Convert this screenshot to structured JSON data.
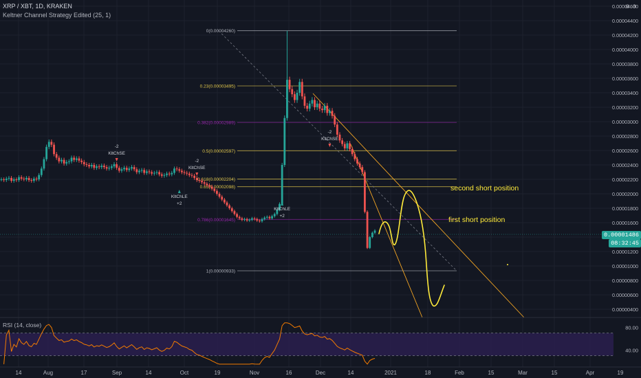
{
  "header": {
    "symbol_line": "XRP / XBT, 1D, KRAKEN",
    "indicator_line": "Keltner Channel Strategy Edited (25, 1)",
    "top_right_value": "0.0"
  },
  "price_badge": {
    "value": "0.00001486",
    "timer": "08:32:45",
    "color": "#26a69a"
  },
  "rsi": {
    "label": "RSI (14, close)",
    "ticks": [
      "80.00",
      "40.00"
    ],
    "upper": 70,
    "lower": 30,
    "line_color": "#f57c00",
    "band_color": "#2a1e4d"
  },
  "colors": {
    "background": "#131722",
    "up": "#26a69a",
    "down": "#ef5350",
    "fib_gray": "#b2b5be",
    "fib_yellow": "#e0c64a",
    "fib_purple": "#9c27b0",
    "trend": "#f5a623",
    "drawing": "#ffeb3b"
  },
  "chart_data": {
    "type": "candlestick",
    "y_axis_ticks": [
      "0.00004600",
      "0.00004400",
      "0.00004200",
      "0.00004000",
      "0.00003800",
      "0.00003600",
      "0.00003400",
      "0.00003200",
      "0.00003000",
      "0.00002800",
      "0.00002600",
      "0.00002400",
      "0.00002200",
      "0.00002000",
      "0.00001800",
      "0.00001600",
      "0.00001400",
      "0.00001200",
      "0.00001000",
      "0.00000800",
      "0.00000600",
      "0.00000400"
    ],
    "x_axis_ticks": [
      "14",
      "Aug",
      "17",
      "Sep",
      "14",
      "Oct",
      "19",
      "Nov",
      "16",
      "Dec",
      "14",
      "2021",
      "18",
      "Feb",
      "15",
      "Mar",
      "15",
      "Apr",
      "19"
    ],
    "fib_levels": [
      {
        "label": "0(0.00004260)",
        "value": 4.26e-05,
        "color": "gray"
      },
      {
        "label": "0.23(0.00003495)",
        "value": 3.495e-05,
        "color": "yellow"
      },
      {
        "label": "0.382(0.00002989)",
        "value": 2.989e-05,
        "color": "purple"
      },
      {
        "label": "0.5(0.00002597)",
        "value": 2.597e-05,
        "color": "yellow"
      },
      {
        "label": "0.618(0.00002204)",
        "value": 2.204e-05,
        "color": "yellow"
      },
      {
        "label": "0.65(0.00002098)",
        "value": 2.098e-05,
        "color": "yellow"
      },
      {
        "label": "0.786(0.00001645)",
        "value": 1.645e-05,
        "color": "purple"
      },
      {
        "label": "1(0.00000933)",
        "value": 9.33e-06,
        "color": "gray"
      }
    ],
    "close_series": [
      2.2e-05,
      2.19e-05,
      2.21e-05,
      2.22e-05,
      2.18e-05,
      2.2e-05,
      2.19e-05,
      2.23e-05,
      2.21e-05,
      2.2e-05,
      2.22e-05,
      2.19e-05,
      2.18e-05,
      2.21e-05,
      2.2e-05,
      2.26e-05,
      2.35e-05,
      2.48e-05,
      2.65e-05,
      2.72e-05,
      2.68e-05,
      2.55e-05,
      2.5e-05,
      2.45e-05,
      2.47e-05,
      2.42e-05,
      2.44e-05,
      2.45e-05,
      2.5e-05,
      2.47e-05,
      2.49e-05,
      2.46e-05,
      2.44e-05,
      2.41e-05,
      2.4e-05,
      2.38e-05,
      2.4e-05,
      2.36e-05,
      2.38e-05,
      2.37e-05,
      2.39e-05,
      2.37e-05,
      2.35e-05,
      2.36e-05,
      2.38e-05,
      2.41e-05,
      2.36e-05,
      2.32e-05,
      2.34e-05,
      2.36e-05,
      2.33e-05,
      2.35e-05,
      2.37e-05,
      2.34e-05,
      2.3e-05,
      2.32e-05,
      2.33e-05,
      2.29e-05,
      2.31e-05,
      2.3e-05,
      2.28e-05,
      2.29e-05,
      2.3e-05,
      2.27e-05,
      2.25e-05,
      2.26e-05,
      2.28e-05,
      2.27e-05,
      2.29e-05,
      2.35e-05,
      2.34e-05,
      2.32e-05,
      2.3e-05,
      2.29e-05,
      2.28e-05,
      2.26e-05,
      2.25e-05,
      2.22e-05,
      2.19e-05,
      2.18e-05,
      2.16e-05,
      2.14e-05,
      2.12e-05,
      2.1e-05,
      2.07e-05,
      2.04e-05,
      2e-05,
      1.96e-05,
      1.92e-05,
      1.88e-05,
      1.84e-05,
      1.8e-05,
      1.76e-05,
      1.72e-05,
      1.68e-05,
      1.66e-05,
      1.64e-05,
      1.65e-05,
      1.63e-05,
      1.64e-05,
      1.66e-05,
      1.65e-05,
      1.63e-05,
      1.62e-05,
      1.65e-05,
      1.67e-05,
      1.68e-05,
      1.66e-05,
      1.69e-05,
      1.72e-05,
      1.78e-05,
      1.86e-05,
      2.4e-05,
      3.05e-05,
      3.58e-05,
      3.45e-05,
      3.38e-05,
      3.3e-05,
      3.4e-05,
      3.55e-05,
      3.35e-05,
      3.22e-05,
      3.18e-05,
      3.25e-05,
      3.3e-05,
      3.2e-05,
      3.25e-05,
      3.18e-05,
      3.16e-05,
      3.22e-05,
      3.12e-05,
      3.15e-05,
      3.08e-05,
      2.96e-05,
      2.82e-05,
      2.74e-05,
      2.69e-05,
      2.63e-05,
      2.7e-05,
      2.62e-05,
      2.55e-05,
      2.48e-05,
      2.42e-05,
      2.37e-05,
      2.3e-05,
      1.75e-05,
      1.25e-05,
      1.4e-05,
      1.46e-05,
      1.49e-05
    ],
    "signals": [
      {
        "type": "short",
        "text": "KltChSE",
        "value": "-2"
      },
      {
        "type": "short",
        "text": "KltChSE",
        "value": "-2"
      },
      {
        "type": "long",
        "text": "KltChLE",
        "value": "+2"
      },
      {
        "type": "long",
        "text": "KltChLE",
        "value": "+2"
      },
      {
        "type": "short",
        "text": "KltChSE",
        "value": "-2"
      }
    ],
    "annotations": [
      "second short position",
      "first short position"
    ]
  }
}
